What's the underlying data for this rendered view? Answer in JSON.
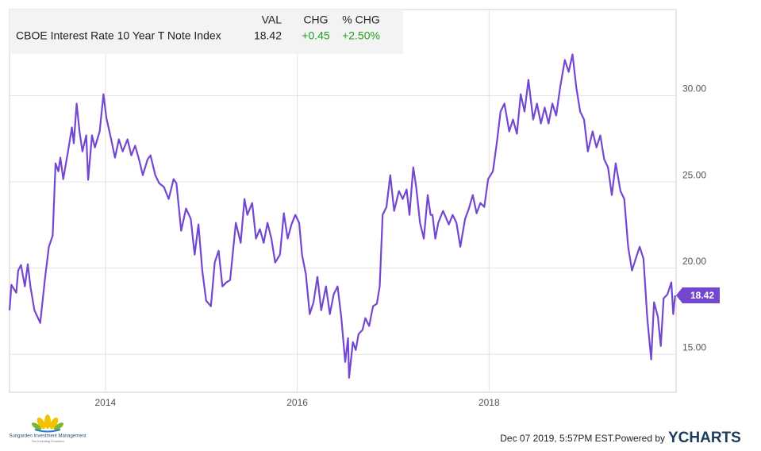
{
  "chart_data": {
    "type": "line",
    "color": "#7447d1",
    "grid": true,
    "xlim": [
      2013.0,
      2019.95
    ],
    "ylim": [
      12.8,
      35.0
    ],
    "xticks": [
      2014,
      2016,
      2018
    ],
    "yticks": [
      {
        "value": 15,
        "label": "15.00"
      },
      {
        "value": 20,
        "label": "20.00"
      },
      {
        "value": 25,
        "label": "25.00"
      },
      {
        "value": 30,
        "label": "30.00"
      }
    ],
    "x": [
      2013.0,
      2013.02,
      2013.07,
      2013.09,
      2013.12,
      2013.16,
      2013.19,
      2013.22,
      2013.26,
      2013.32,
      2013.37,
      2013.41,
      2013.45,
      2013.48,
      2013.51,
      2013.53,
      2013.56,
      2013.61,
      2013.65,
      2013.67,
      2013.7,
      2013.73,
      2013.76,
      2013.8,
      2013.82,
      2013.86,
      2013.89,
      2013.94,
      2013.98,
      2014.01,
      2014.06,
      2014.1,
      2014.14,
      2014.18,
      2014.23,
      2014.27,
      2014.31,
      2014.35,
      2014.39,
      2014.44,
      2014.47,
      2014.52,
      2014.56,
      2014.61,
      2014.66,
      2014.71,
      2014.74,
      2014.79,
      2014.84,
      2014.89,
      2014.93,
      2014.97,
      2015.01,
      2015.05,
      2015.1,
      2015.14,
      2015.18,
      2015.22,
      2015.26,
      2015.3,
      2015.36,
      2015.41,
      2015.45,
      2015.48,
      2015.53,
      2015.57,
      2015.61,
      2015.65,
      2015.69,
      2015.73,
      2015.77,
      2015.82,
      2015.86,
      2015.9,
      2015.94,
      2015.98,
      2016.02,
      2016.05,
      2016.09,
      2016.13,
      2016.17,
      2016.21,
      2016.25,
      2016.3,
      2016.34,
      2016.38,
      2016.42,
      2016.46,
      2016.5,
      2016.53,
      2016.54,
      2016.58,
      2016.61,
      2016.64,
      2016.68,
      2016.71,
      2016.75,
      2016.79,
      2016.83,
      2016.86,
      2016.89,
      2016.93,
      2016.97,
      2017.01,
      2017.06,
      2017.1,
      2017.14,
      2017.17,
      2017.21,
      2017.24,
      2017.28,
      2017.32,
      2017.36,
      2017.39,
      2017.41,
      2017.44,
      2017.47,
      2017.52,
      2017.58,
      2017.62,
      2017.66,
      2017.7,
      2017.75,
      2017.79,
      2017.83,
      2017.87,
      2017.91,
      2017.95,
      2017.99,
      2018.04,
      2018.08,
      2018.12,
      2018.16,
      2018.21,
      2018.25,
      2018.29,
      2018.33,
      2018.37,
      2018.41,
      2018.46,
      2018.5,
      2018.54,
      2018.58,
      2018.62,
      2018.66,
      2018.7,
      2018.74,
      2018.79,
      2018.83,
      2018.87,
      2018.91,
      2018.95,
      2018.99,
      2019.03,
      2019.08,
      2019.12,
      2019.16,
      2019.2,
      2019.24,
      2019.28,
      2019.32,
      2019.37,
      2019.41,
      2019.45,
      2019.49,
      2019.53,
      2019.57,
      2019.61,
      2019.65,
      2019.69,
      2019.72,
      2019.76,
      2019.79,
      2019.82,
      2019.86,
      2019.9,
      2019.92,
      2019.94
    ],
    "values": [
      17.56,
      19.03,
      18.57,
      19.86,
      20.18,
      18.94,
      20.23,
      18.85,
      17.56,
      16.82,
      19.4,
      21.24,
      21.89,
      26.08,
      25.62,
      26.41,
      25.16,
      26.77,
      28.16,
      27.24,
      29.54,
      27.93,
      26.77,
      27.7,
      25.12,
      27.7,
      27.0,
      27.93,
      30.09,
      28.71,
      27.47,
      26.41,
      27.47,
      26.77,
      27.47,
      26.54,
      27.1,
      26.31,
      25.39,
      26.31,
      26.54,
      25.39,
      24.93,
      24.7,
      24.01,
      25.16,
      24.93,
      22.17,
      23.46,
      22.86,
      20.78,
      22.53,
      19.86,
      18.11,
      17.79,
      20.32,
      21.01,
      18.94,
      19.17,
      19.31,
      22.63,
      21.47,
      24.01,
      23.09,
      23.78,
      21.71,
      22.26,
      21.47,
      22.63,
      21.71,
      20.32,
      20.78,
      23.18,
      21.71,
      22.53,
      23.09,
      22.63,
      20.78,
      19.63,
      17.33,
      18.02,
      19.49,
      17.56,
      18.94,
      17.33,
      18.48,
      18.94,
      17.1,
      14.56,
      15.94,
      13.64,
      15.71,
      15.25,
      16.18,
      16.41,
      17.1,
      16.64,
      17.79,
      17.93,
      18.94,
      23.09,
      23.55,
      25.39,
      23.32,
      24.47,
      24.01,
      24.56,
      23.09,
      25.85,
      24.7,
      22.63,
      21.71,
      24.24,
      23.09,
      23.09,
      21.71,
      22.63,
      23.32,
      22.53,
      23.09,
      22.63,
      21.24,
      22.86,
      23.46,
      24.24,
      23.18,
      23.78,
      23.55,
      25.16,
      25.62,
      27.24,
      29.08,
      29.54,
      27.93,
      28.62,
      27.79,
      30.09,
      29.08,
      30.92,
      28.62,
      29.54,
      28.39,
      29.31,
      28.39,
      29.54,
      28.85,
      30.46,
      32.07,
      31.38,
      32.4,
      30.46,
      29.08,
      28.62,
      26.77,
      27.93,
      27.0,
      27.7,
      26.31,
      25.85,
      24.24,
      26.08,
      24.47,
      24.01,
      21.24,
      19.86,
      20.55,
      21.24,
      20.55,
      17.1,
      14.7,
      18.02,
      17.19,
      15.48,
      18.25,
      18.48,
      19.17,
      17.33,
      18.42
    ],
    "info_table": {
      "headers": [
        "VAL",
        "CHG",
        "% CHG"
      ],
      "row": [
        "CBOE Interest Rate 10 Year T Note Index",
        "18.42",
        "+0.45",
        "+2.50%"
      ]
    },
    "timestamp": "Dec 07 2019, 5:57PM EST.",
    "powered_by": "Powered by",
    "brand": "YCHARTS",
    "logo_name": "Sungarden Investment Management",
    "logo_tagline": "The Investing Evolution"
  }
}
